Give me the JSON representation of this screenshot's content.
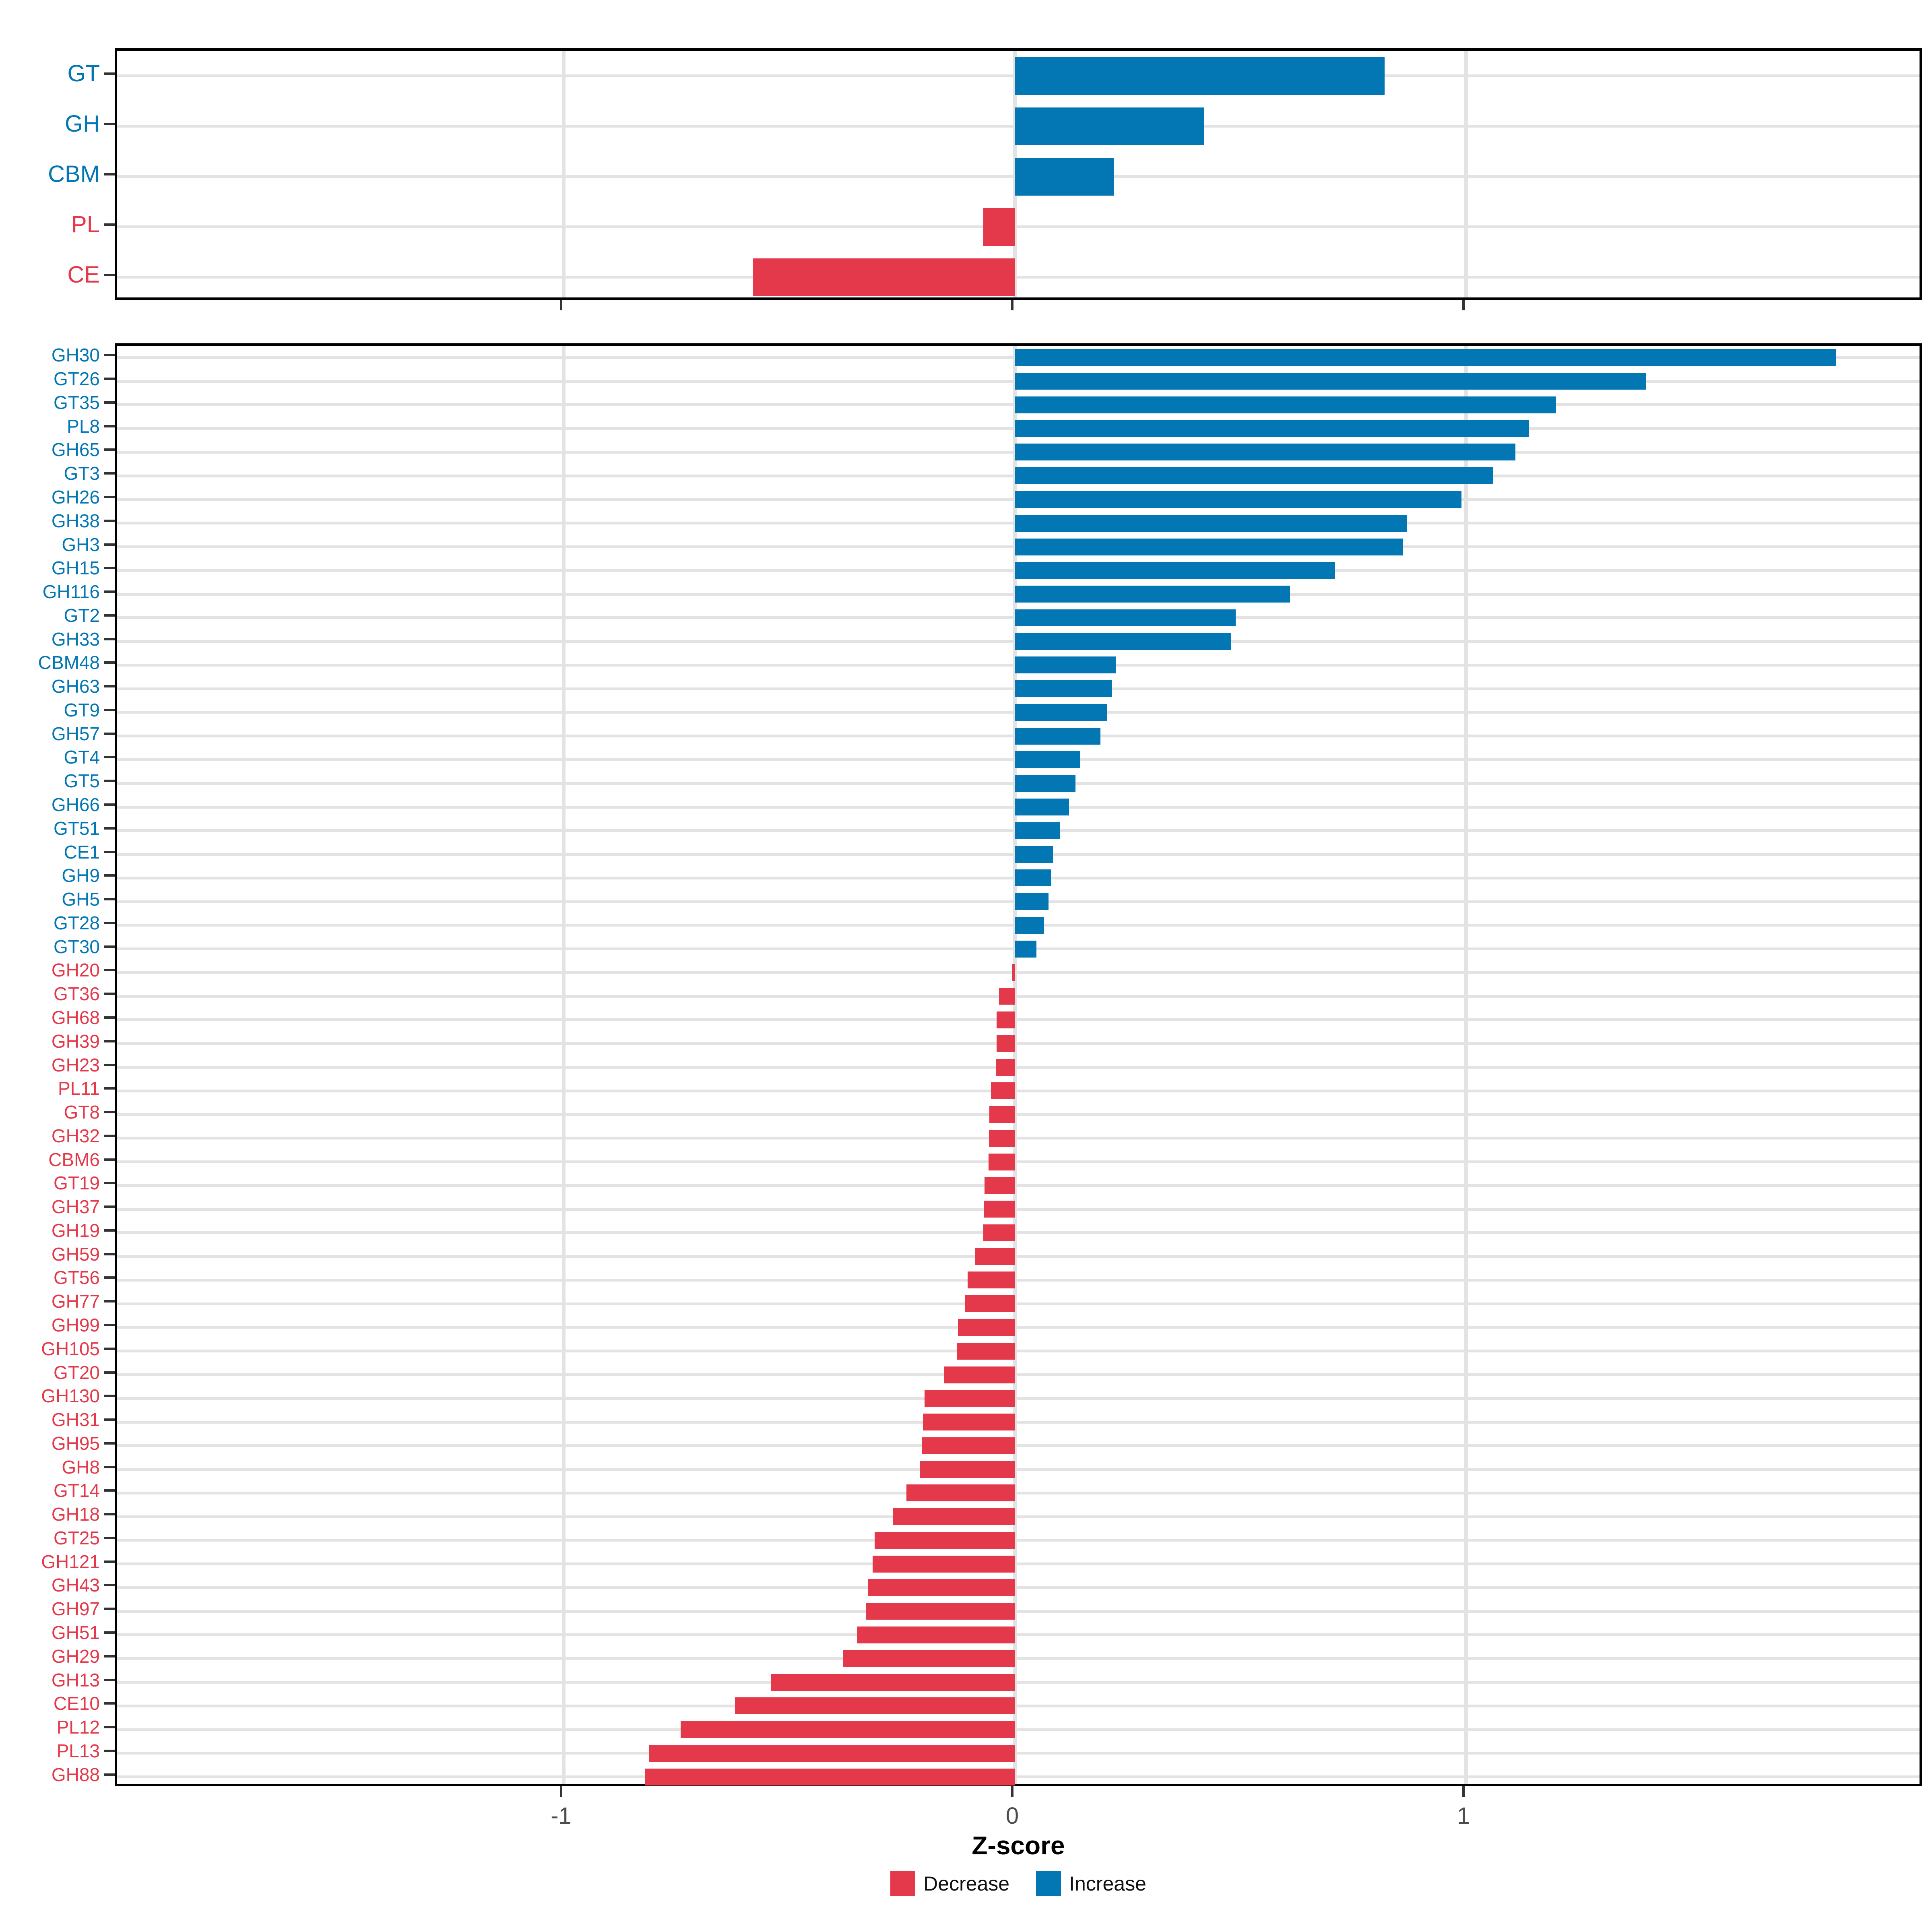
{
  "colors": {
    "decrease": "#e4394a",
    "increase": "#0277b4",
    "gridline": "#e3e3e3",
    "panel_border": "#000000",
    "axis_text": "#4d4d4d",
    "tick_mark": "#333333"
  },
  "chart_data": {
    "type": "bar",
    "orientation": "horizontal",
    "title": "",
    "xlabel": "Z-score",
    "ylabel": "",
    "x_range": [
      -1.99,
      2.02
    ],
    "x_ticks": [
      {
        "value": -1,
        "label": "-1"
      },
      {
        "value": 0,
        "label": "0"
      },
      {
        "value": 1,
        "label": "1"
      }
    ],
    "grid": "major-only",
    "legend_position": "bottom",
    "legend": [
      {
        "label": "Decrease",
        "color": "#e4394a"
      },
      {
        "label": "Increase",
        "color": "#0277b4"
      }
    ],
    "panels": [
      {
        "name": "enzyme-class-summary",
        "items": [
          {
            "label": "GT",
            "value": 0.82,
            "direction": "increase"
          },
          {
            "label": "GH",
            "value": 0.42,
            "direction": "increase"
          },
          {
            "label": "CBM",
            "value": 0.22,
            "direction": "increase"
          },
          {
            "label": "PL",
            "value": -0.07,
            "direction": "decrease"
          },
          {
            "label": "CE",
            "value": -0.58,
            "direction": "decrease"
          }
        ]
      },
      {
        "name": "enzyme-family-detail",
        "items": [
          {
            "label": "GH30",
            "value": 1.82,
            "direction": "increase"
          },
          {
            "label": "GT26",
            "value": 1.4,
            "direction": "increase"
          },
          {
            "label": "GT35",
            "value": 1.2,
            "direction": "increase"
          },
          {
            "label": "PL8",
            "value": 1.14,
            "direction": "increase"
          },
          {
            "label": "GH65",
            "value": 1.11,
            "direction": "increase"
          },
          {
            "label": "GT3",
            "value": 1.06,
            "direction": "increase"
          },
          {
            "label": "GH26",
            "value": 0.99,
            "direction": "increase"
          },
          {
            "label": "GH38",
            "value": 0.87,
            "direction": "increase"
          },
          {
            "label": "GH3",
            "value": 0.86,
            "direction": "increase"
          },
          {
            "label": "GH15",
            "value": 0.71,
            "direction": "increase"
          },
          {
            "label": "GH116",
            "value": 0.61,
            "direction": "increase"
          },
          {
            "label": "GT2",
            "value": 0.49,
            "direction": "increase"
          },
          {
            "label": "GH33",
            "value": 0.48,
            "direction": "increase"
          },
          {
            "label": "CBM48",
            "value": 0.225,
            "direction": "increase"
          },
          {
            "label": "GH63",
            "value": 0.215,
            "direction": "increase"
          },
          {
            "label": "GT9",
            "value": 0.205,
            "direction": "increase"
          },
          {
            "label": "GH57",
            "value": 0.19,
            "direction": "increase"
          },
          {
            "label": "GT4",
            "value": 0.145,
            "direction": "increase"
          },
          {
            "label": "GT5",
            "value": 0.135,
            "direction": "increase"
          },
          {
            "label": "GH66",
            "value": 0.12,
            "direction": "increase"
          },
          {
            "label": "GT51",
            "value": 0.1,
            "direction": "increase"
          },
          {
            "label": "CE1",
            "value": 0.085,
            "direction": "increase"
          },
          {
            "label": "GH9",
            "value": 0.08,
            "direction": "increase"
          },
          {
            "label": "GH5",
            "value": 0.075,
            "direction": "increase"
          },
          {
            "label": "GT28",
            "value": 0.065,
            "direction": "increase"
          },
          {
            "label": "GT30",
            "value": 0.048,
            "direction": "increase"
          },
          {
            "label": "GH20",
            "value": -0.005,
            "direction": "decrease"
          },
          {
            "label": "GT36",
            "value": -0.035,
            "direction": "decrease"
          },
          {
            "label": "GH68",
            "value": -0.04,
            "direction": "decrease"
          },
          {
            "label": "GH39",
            "value": -0.04,
            "direction": "decrease"
          },
          {
            "label": "GH23",
            "value": -0.042,
            "direction": "decrease"
          },
          {
            "label": "PL11",
            "value": -0.053,
            "direction": "decrease"
          },
          {
            "label": "GT8",
            "value": -0.056,
            "direction": "decrease"
          },
          {
            "label": "GH32",
            "value": -0.057,
            "direction": "decrease"
          },
          {
            "label": "CBM6",
            "value": -0.058,
            "direction": "decrease"
          },
          {
            "label": "GT19",
            "value": -0.067,
            "direction": "decrease"
          },
          {
            "label": "GH37",
            "value": -0.068,
            "direction": "decrease"
          },
          {
            "label": "GH19",
            "value": -0.07,
            "direction": "decrease"
          },
          {
            "label": "GH59",
            "value": -0.088,
            "direction": "decrease"
          },
          {
            "label": "GT56",
            "value": -0.104,
            "direction": "decrease"
          },
          {
            "label": "GH77",
            "value": -0.11,
            "direction": "decrease"
          },
          {
            "label": "GH99",
            "value": -0.126,
            "direction": "decrease"
          },
          {
            "label": "GH105",
            "value": -0.128,
            "direction": "decrease"
          },
          {
            "label": "GT20",
            "value": -0.156,
            "direction": "decrease"
          },
          {
            "label": "GH130",
            "value": -0.2,
            "direction": "decrease"
          },
          {
            "label": "GH31",
            "value": -0.203,
            "direction": "decrease"
          },
          {
            "label": "GH95",
            "value": -0.206,
            "direction": "decrease"
          },
          {
            "label": "GH8",
            "value": -0.21,
            "direction": "decrease"
          },
          {
            "label": "GT14",
            "value": -0.24,
            "direction": "decrease"
          },
          {
            "label": "GH18",
            "value": -0.27,
            "direction": "decrease"
          },
          {
            "label": "GT25",
            "value": -0.31,
            "direction": "decrease"
          },
          {
            "label": "GH121",
            "value": -0.315,
            "direction": "decrease"
          },
          {
            "label": "GH43",
            "value": -0.325,
            "direction": "decrease"
          },
          {
            "label": "GH97",
            "value": -0.33,
            "direction": "decrease"
          },
          {
            "label": "GH51",
            "value": -0.35,
            "direction": "decrease"
          },
          {
            "label": "GH29",
            "value": -0.38,
            "direction": "decrease"
          },
          {
            "label": "GH13",
            "value": -0.54,
            "direction": "decrease"
          },
          {
            "label": "CE10",
            "value": -0.62,
            "direction": "decrease"
          },
          {
            "label": "PL12",
            "value": -0.74,
            "direction": "decrease"
          },
          {
            "label": "PL13",
            "value": -0.81,
            "direction": "decrease"
          },
          {
            "label": "GH88",
            "value": -0.82,
            "direction": "decrease"
          }
        ]
      }
    ]
  }
}
